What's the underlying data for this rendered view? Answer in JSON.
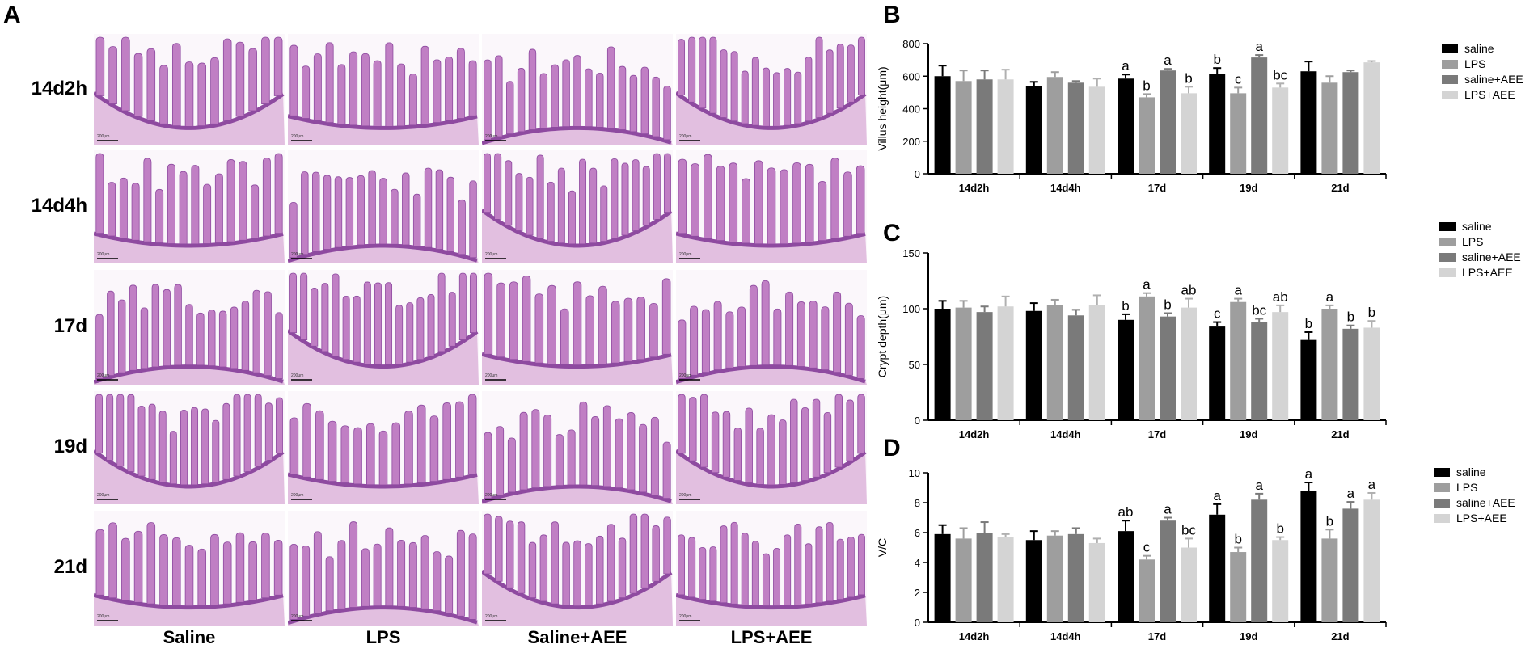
{
  "panel_labels": {
    "a": "A",
    "b": "B",
    "c": "C",
    "d": "D"
  },
  "histology": {
    "rows": [
      "14d2h",
      "14d4h",
      "17d",
      "19d",
      "21d"
    ],
    "columns": [
      "Saline",
      "LPS",
      "Saline+AEE",
      "LPS+AEE"
    ],
    "scale_bar_text": "200μm",
    "colors": {
      "tissue": "#c07fc4",
      "tissue_dark": "#8e4aa0",
      "stroma": "#e2bfe0",
      "background": "#fbf7fb"
    }
  },
  "chart_data": [
    {
      "type": "bar",
      "panel": "B",
      "categories": [
        "14d2h",
        "14d4h",
        "17d",
        "19d",
        "21d"
      ],
      "ylabel": "Villus height(μm)",
      "ylim": [
        0,
        800
      ],
      "yticks": [
        0,
        200,
        400,
        600,
        800
      ],
      "legend_position": "top-right",
      "series": [
        {
          "name": "saline",
          "color": "#000000",
          "values": [
            600,
            540,
            585,
            615,
            630
          ],
          "errors": [
            65,
            25,
            25,
            35,
            60
          ],
          "letters": [
            "",
            "",
            "a",
            "b",
            ""
          ]
        },
        {
          "name": "LPS",
          "color": "#9e9e9e",
          "values": [
            570,
            595,
            470,
            495,
            560
          ],
          "errors": [
            65,
            30,
            20,
            35,
            40
          ],
          "letters": [
            "",
            "",
            "b",
            "c",
            ""
          ]
        },
        {
          "name": "saline+AEE",
          "color": "#7a7a7a",
          "values": [
            580,
            560,
            635,
            715,
            625
          ],
          "errors": [
            55,
            10,
            10,
            15,
            10
          ],
          "letters": [
            "",
            "",
            "a",
            "a",
            ""
          ]
        },
        {
          "name": "LPS+AEE",
          "color": "#d4d4d4",
          "values": [
            580,
            535,
            495,
            530,
            685
          ],
          "errors": [
            60,
            50,
            40,
            25,
            8
          ],
          "letters": [
            "",
            "",
            "b",
            "bc",
            ""
          ]
        }
      ]
    },
    {
      "type": "bar",
      "panel": "C",
      "categories": [
        "14d2h",
        "14d4h",
        "17d",
        "19d",
        "21d"
      ],
      "ylabel": "Crypt depth(μm)",
      "ylim": [
        0,
        150
      ],
      "yticks": [
        0,
        50,
        100,
        150
      ],
      "legend_position": "top-right",
      "series": [
        {
          "name": "saline",
          "color": "#000000",
          "values": [
            100,
            98,
            90,
            84,
            72
          ],
          "errors": [
            7,
            7,
            5,
            4,
            7
          ],
          "letters": [
            "",
            "",
            "b",
            "c",
            "b"
          ]
        },
        {
          "name": "LPS",
          "color": "#9e9e9e",
          "values": [
            101,
            103,
            111,
            106,
            100
          ],
          "errors": [
            6,
            5,
            3,
            3,
            3
          ],
          "letters": [
            "",
            "",
            "a",
            "a",
            "a"
          ]
        },
        {
          "name": "saline+AEE",
          "color": "#7a7a7a",
          "values": [
            97,
            94,
            93,
            88,
            82
          ],
          "errors": [
            5,
            5,
            3,
            3,
            3
          ],
          "letters": [
            "",
            "",
            "b",
            "bc",
            "b"
          ]
        },
        {
          "name": "LPS+AEE",
          "color": "#d4d4d4",
          "values": [
            102,
            103,
            101,
            97,
            83
          ],
          "errors": [
            9,
            9,
            8,
            6,
            6
          ],
          "letters": [
            "",
            "",
            "ab",
            "ab",
            "b"
          ]
        }
      ]
    },
    {
      "type": "bar",
      "panel": "D",
      "categories": [
        "14d2h",
        "14d4h",
        "17d",
        "19d",
        "21d"
      ],
      "ylabel": "V/C",
      "ylim": [
        0,
        10
      ],
      "yticks": [
        0,
        2,
        4,
        6,
        8,
        10
      ],
      "legend_position": "top-right",
      "series": [
        {
          "name": "saline",
          "color": "#000000",
          "values": [
            5.9,
            5.5,
            6.1,
            7.2,
            8.8
          ],
          "errors": [
            0.6,
            0.6,
            0.7,
            0.7,
            0.55
          ],
          "letters": [
            "",
            "",
            "ab",
            "a",
            "a"
          ]
        },
        {
          "name": "LPS",
          "color": "#9e9e9e",
          "values": [
            5.6,
            5.8,
            4.2,
            4.7,
            5.6
          ],
          "errors": [
            0.7,
            0.3,
            0.25,
            0.3,
            0.6
          ],
          "letters": [
            "",
            "",
            "c",
            "b",
            "b"
          ]
        },
        {
          "name": "saline+AEE",
          "color": "#7a7a7a",
          "values": [
            6.0,
            5.9,
            6.8,
            8.2,
            7.6
          ],
          "errors": [
            0.7,
            0.4,
            0.2,
            0.4,
            0.45
          ],
          "letters": [
            "",
            "",
            "a",
            "a",
            "a"
          ]
        },
        {
          "name": "LPS+AEE",
          "color": "#d4d4d4",
          "values": [
            5.7,
            5.3,
            5.0,
            5.5,
            8.2
          ],
          "errors": [
            0.2,
            0.3,
            0.6,
            0.2,
            0.45
          ],
          "letters": [
            "",
            "",
            "bc",
            "b",
            "a"
          ]
        }
      ]
    }
  ]
}
